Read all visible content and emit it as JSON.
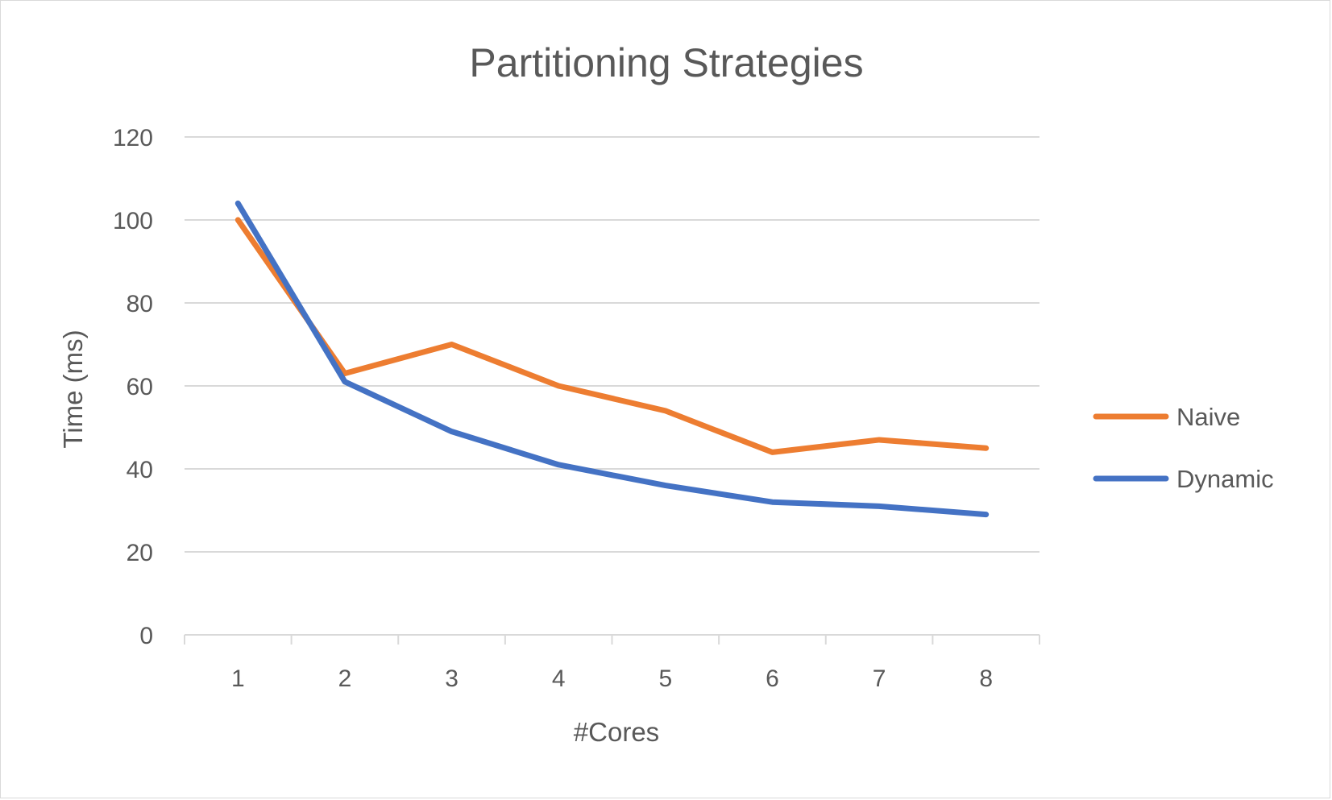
{
  "chart_data": {
    "type": "line",
    "title": "Partitioning Strategies",
    "xlabel": "#Cores",
    "ylabel": "Time (ms)",
    "categories": [
      "1",
      "2",
      "3",
      "4",
      "5",
      "6",
      "7",
      "8"
    ],
    "ylim": [
      0,
      120
    ],
    "yticks": [
      "0",
      "20",
      "40",
      "60",
      "80",
      "100",
      "120"
    ],
    "grid": true,
    "legend_position": "right",
    "series": [
      {
        "name": "Naive",
        "color": "#ED7D31",
        "values": [
          100,
          63,
          70,
          60,
          54,
          44,
          47,
          45
        ]
      },
      {
        "name": "Dynamic",
        "color": "#4472C4",
        "values": [
          104,
          61,
          49,
          41,
          36,
          32,
          31,
          29
        ]
      }
    ]
  }
}
